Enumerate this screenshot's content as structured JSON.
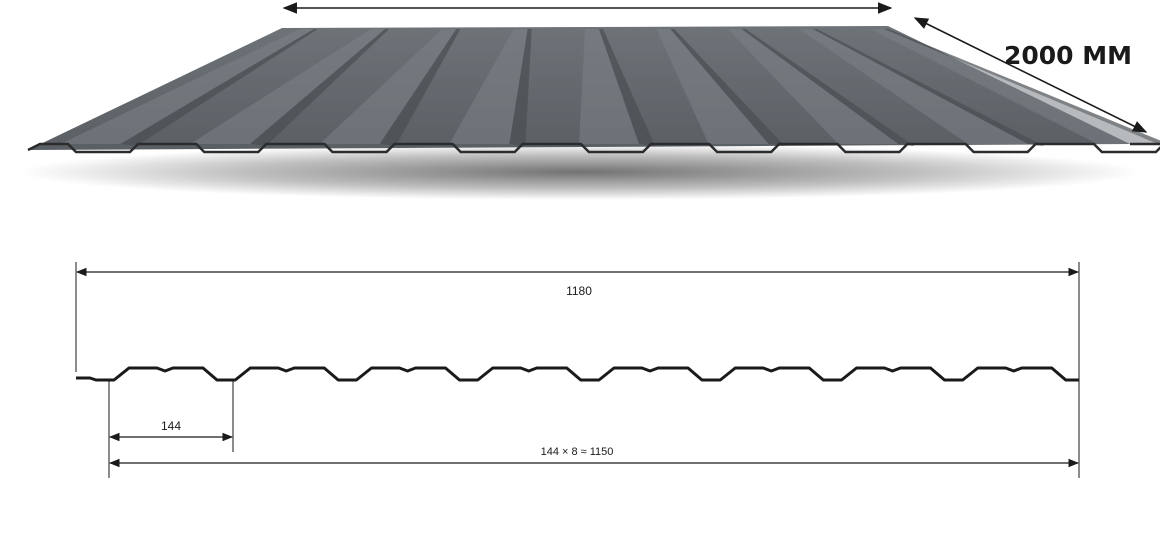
{
  "diagram": {
    "sheet": {
      "length_label": "2000 MM",
      "sheet_color": "#62676c",
      "rib_dark": "#4a4e52",
      "rib_light": "#7c8187",
      "edge_color": "#2a2c2e"
    },
    "profile": {
      "overall_width_label": "1180",
      "pitch_label": "144",
      "cover_width_label": "144 × 8 ≈ 1150",
      "rib_count": 8
    },
    "line_color": "#1a1a1a"
  }
}
